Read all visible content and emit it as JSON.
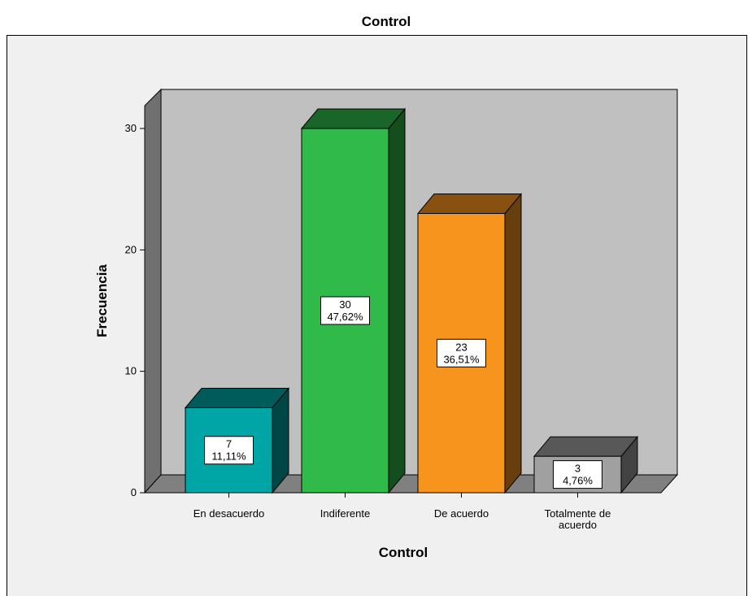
{
  "chart_data": {
    "type": "bar",
    "title": "Control",
    "xlabel": "Control",
    "ylabel": "Frecuencia",
    "ylim": [
      0,
      30
    ],
    "yticks": [
      0,
      10,
      20,
      30
    ],
    "grid": false,
    "three_d": true,
    "categories": [
      [
        "En desacuerdo"
      ],
      [
        "Indiferente"
      ],
      [
        "De acuerdo"
      ],
      [
        "Totalmente de",
        "acuerdo"
      ]
    ],
    "values": [
      7,
      30,
      23,
      3
    ],
    "percent_labels": [
      "11,11%",
      "47,62%",
      "36,51%",
      "4,76%"
    ],
    "count_labels": [
      "7",
      "30",
      "23",
      "3"
    ],
    "colors": [
      "#00a6a6",
      "#2fba4a",
      "#f7941d",
      "#a0a0a0"
    ]
  }
}
